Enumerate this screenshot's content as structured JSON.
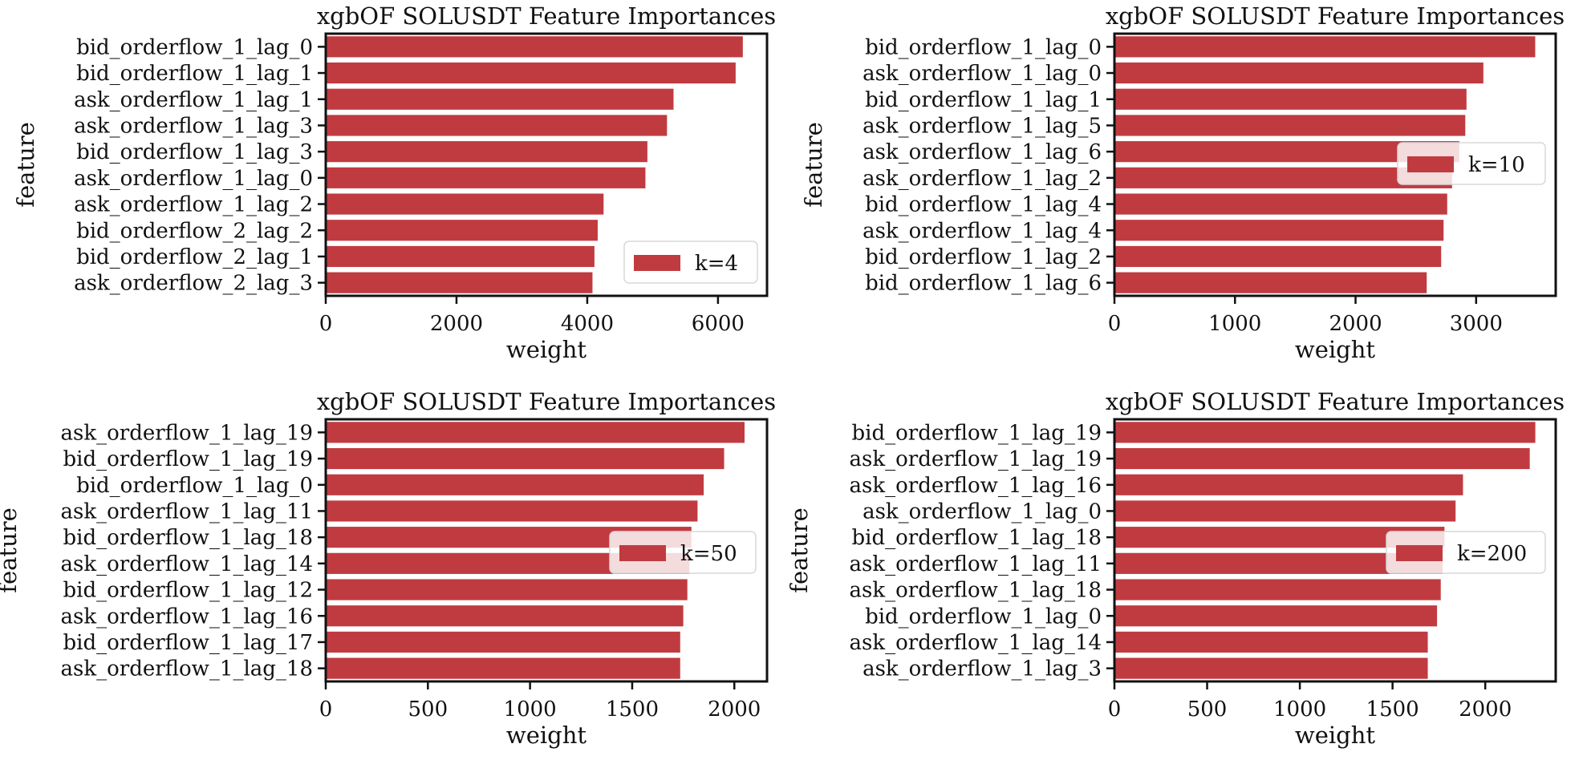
{
  "chart_data": [
    {
      "type": "bar",
      "orientation": "horizontal",
      "title": "xgbOF SOLUSDT Feature Importances",
      "xlabel": "weight",
      "ylabel": "feature",
      "xlim": [
        0,
        6750
      ],
      "xticks": [
        0,
        2000,
        4000,
        6000
      ],
      "xtick_labels": [
        "0",
        "2000",
        "4000",
        "6000"
      ],
      "legend": "lower-right",
      "series": [
        {
          "name": "k=4",
          "color": "#c03b40"
        }
      ],
      "categories": [
        "bid_orderflow_1_lag_0",
        "bid_orderflow_1_lag_1",
        "ask_orderflow_1_lag_1",
        "ask_orderflow_1_lag_3",
        "bid_orderflow_1_lag_3",
        "ask_orderflow_1_lag_0",
        "ask_orderflow_1_lag_2",
        "bid_orderflow_2_lag_2",
        "bid_orderflow_2_lag_1",
        "ask_orderflow_2_lag_3"
      ],
      "values": [
        6380,
        6270,
        5320,
        5220,
        4920,
        4890,
        4250,
        4160,
        4110,
        4080
      ]
    },
    {
      "type": "bar",
      "orientation": "horizontal",
      "title": "xgbOF SOLUSDT Feature Importances",
      "xlabel": "weight",
      "ylabel": "feature",
      "xlim": [
        0,
        3660
      ],
      "xticks": [
        0,
        1000,
        2000,
        3000
      ],
      "xtick_labels": [
        "0",
        "1000",
        "2000",
        "3000"
      ],
      "legend": "center-right",
      "series": [
        {
          "name": "k=10",
          "color": "#c03b40"
        }
      ],
      "categories": [
        "bid_orderflow_1_lag_0",
        "ask_orderflow_1_lag_0",
        "bid_orderflow_1_lag_1",
        "ask_orderflow_1_lag_5",
        "ask_orderflow_1_lag_6",
        "ask_orderflow_1_lag_2",
        "bid_orderflow_1_lag_4",
        "ask_orderflow_1_lag_4",
        "bid_orderflow_1_lag_2",
        "bid_orderflow_1_lag_6"
      ],
      "values": [
        3490,
        3060,
        2920,
        2910,
        2860,
        2800,
        2760,
        2730,
        2710,
        2590
      ]
    },
    {
      "type": "bar",
      "orientation": "horizontal",
      "title": "xgbOF SOLUSDT Feature Importances",
      "xlabel": "weight",
      "ylabel": "feature",
      "xlim": [
        0,
        2160
      ],
      "xticks": [
        0,
        500,
        1000,
        1500,
        2000
      ],
      "xtick_labels": [
        "0",
        "500",
        "1000",
        "1500",
        "2000"
      ],
      "legend": "center-right",
      "series": [
        {
          "name": "k=50",
          "color": "#c03b40"
        }
      ],
      "categories": [
        "ask_orderflow_1_lag_19",
        "bid_orderflow_1_lag_19",
        "bid_orderflow_1_lag_0",
        "ask_orderflow_1_lag_11",
        "bid_orderflow_1_lag_18",
        "ask_orderflow_1_lag_14",
        "bid_orderflow_1_lag_12",
        "ask_orderflow_1_lag_16",
        "bid_orderflow_1_lag_17",
        "ask_orderflow_1_lag_18"
      ],
      "values": [
        2050,
        1950,
        1850,
        1820,
        1790,
        1780,
        1770,
        1750,
        1735,
        1735
      ]
    },
    {
      "type": "bar",
      "orientation": "horizontal",
      "title": "xgbOF SOLUSDT Feature Importances",
      "xlabel": "weight",
      "ylabel": "feature",
      "xlim": [
        0,
        2380
      ],
      "xticks": [
        0,
        500,
        1000,
        1500,
        2000
      ],
      "xtick_labels": [
        "0",
        "500",
        "1000",
        "1500",
        "2000"
      ],
      "legend": "center-right",
      "series": [
        {
          "name": "k=200",
          "color": "#c03b40"
        }
      ],
      "categories": [
        "bid_orderflow_1_lag_19",
        "ask_orderflow_1_lag_19",
        "ask_orderflow_1_lag_16",
        "ask_orderflow_1_lag_0",
        "bid_orderflow_1_lag_18",
        "ask_orderflow_1_lag_11",
        "ask_orderflow_1_lag_18",
        "bid_orderflow_1_lag_0",
        "ask_orderflow_1_lag_14",
        "ask_orderflow_1_lag_3"
      ],
      "values": [
        2270,
        2240,
        1880,
        1840,
        1780,
        1770,
        1760,
        1740,
        1690,
        1690
      ]
    }
  ]
}
